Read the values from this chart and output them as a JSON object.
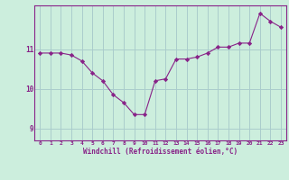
{
  "hours": [
    0,
    1,
    2,
    3,
    4,
    5,
    6,
    7,
    8,
    9,
    10,
    11,
    12,
    13,
    14,
    15,
    16,
    17,
    18,
    19,
    20,
    21,
    22,
    23
  ],
  "values": [
    10.9,
    10.9,
    10.9,
    10.85,
    10.7,
    10.4,
    10.2,
    9.85,
    9.65,
    9.35,
    9.35,
    10.2,
    10.25,
    10.75,
    10.75,
    10.8,
    10.9,
    11.05,
    11.05,
    11.15,
    11.15,
    11.9,
    11.7,
    11.55
  ],
  "yticks": [
    9,
    10,
    11
  ],
  "xtick_labels": [
    "0",
    "1",
    "2",
    "3",
    "4",
    "5",
    "6",
    "7",
    "8",
    "9",
    "10",
    "11",
    "12",
    "13",
    "14",
    "15",
    "16",
    "17",
    "18",
    "19",
    "20",
    "21",
    "22",
    "23"
  ],
  "xlabel": "Windchill (Refroidissement éolien,°C)",
  "ylim": [
    8.7,
    12.1
  ],
  "xlim": [
    -0.5,
    23.5
  ],
  "line_color": "#882288",
  "bg_color": "#cceedd",
  "grid_color": "#aacccc",
  "tick_color": "#882288",
  "label_color": "#882288"
}
